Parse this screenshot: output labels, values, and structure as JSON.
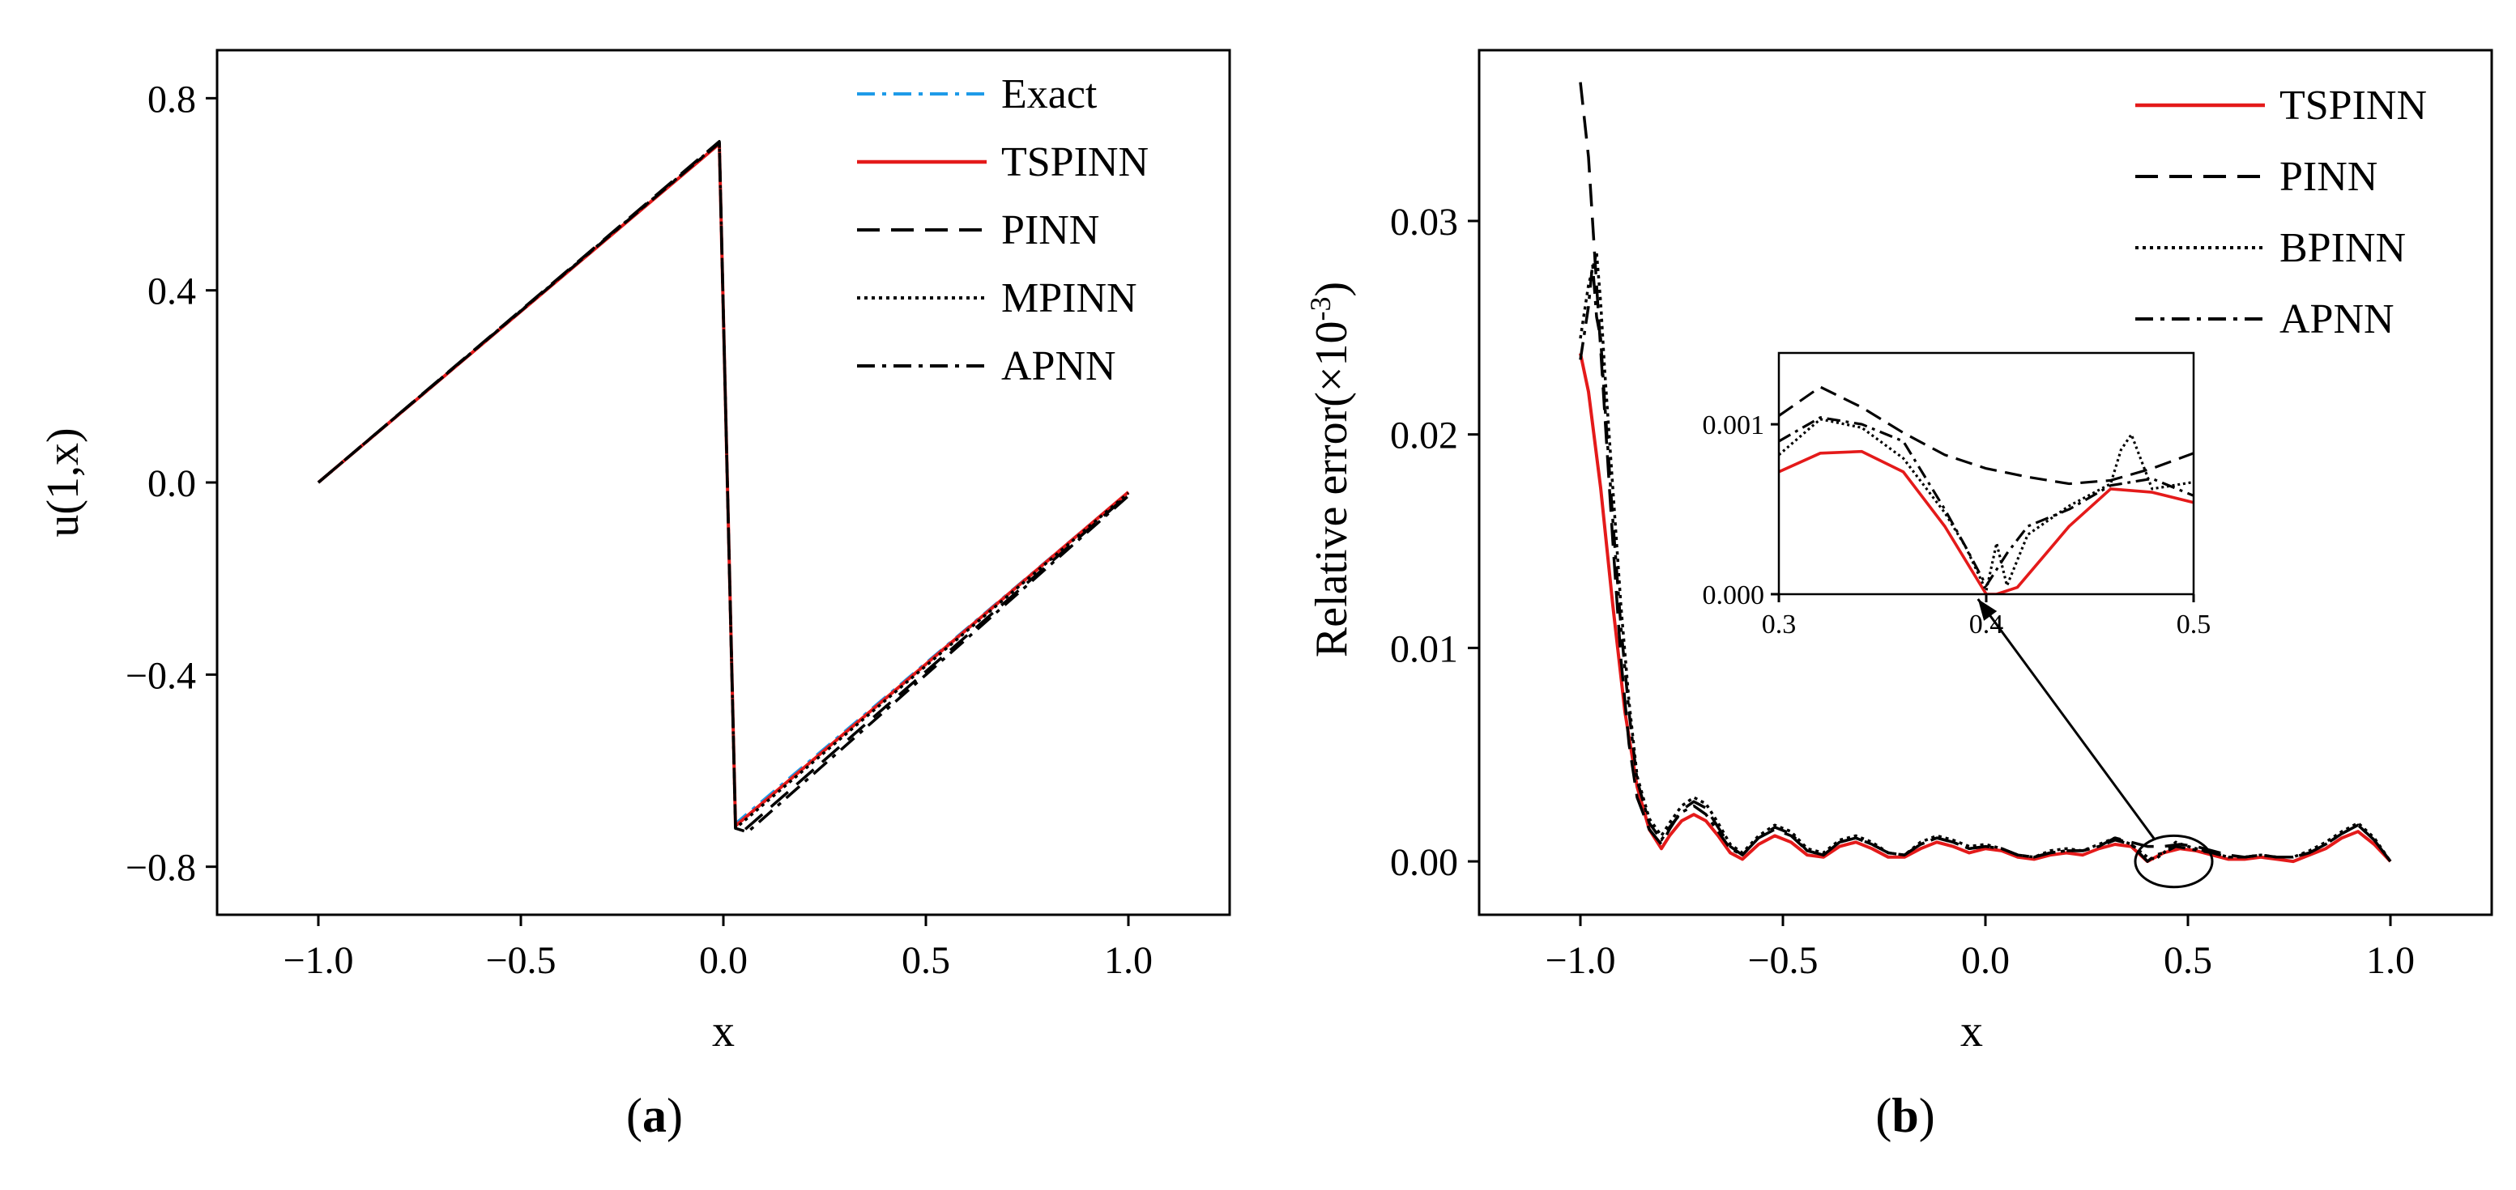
{
  "panels": [
    {
      "id": "a",
      "panel_label": {
        "open": "(",
        "letter": "a",
        "close": ")"
      },
      "legend": [
        {
          "name": "Exact",
          "color": "#1E9BE8",
          "style": "dashdot"
        },
        {
          "name": "TSPINN",
          "color": "#E41A1A",
          "style": "solid"
        },
        {
          "name": "PINN",
          "color": "#000000",
          "style": "dashed"
        },
        {
          "name": "MPINN",
          "color": "#000000",
          "style": "dotted"
        },
        {
          "name": "APNN",
          "color": "#000000",
          "style": "dashdot"
        }
      ]
    },
    {
      "id": "b",
      "panel_label": {
        "open": "(",
        "letter": "b",
        "close": ")"
      },
      "legend": [
        {
          "name": "TSPINN",
          "color": "#E41A1A",
          "style": "solid"
        },
        {
          "name": "PINN",
          "color": "#000000",
          "style": "dashed"
        },
        {
          "name": "BPINN",
          "color": "#000000",
          "style": "dotted"
        },
        {
          "name": "APNN",
          "color": "#000000",
          "style": "dashdot"
        }
      ]
    }
  ],
  "chart_data": [
    {
      "type": "line",
      "xlabel": "x",
      "ylabel": "u(1,x)",
      "xlim": [
        -1.25,
        1.25
      ],
      "ylim": [
        -0.9,
        0.9
      ],
      "xticks": [
        -1.0,
        -0.5,
        0.0,
        0.5,
        1.0
      ],
      "xtick_labels": [
        "−1.0",
        "−0.5",
        "0.0",
        "0.5",
        "1.0"
      ],
      "yticks": [
        -0.8,
        -0.4,
        0.0,
        0.4,
        0.8
      ],
      "ytick_labels": [
        "−0.8",
        "−0.4",
        "0.0",
        "0.4",
        "0.8"
      ],
      "grid": false,
      "legend_position": "top-right",
      "series": [
        {
          "name": "Exact",
          "x": [
            -1.0,
            -0.01,
            0.03,
            1.0
          ],
          "y": [
            0.0,
            0.706,
            -0.71,
            -0.02
          ]
        },
        {
          "name": "TSPINN",
          "x": [
            -1.0,
            -0.01,
            0.03,
            1.0
          ],
          "y": [
            0.0,
            0.705,
            -0.715,
            -0.02
          ]
        },
        {
          "name": "PINN",
          "x": [
            -1.0,
            -0.01,
            0.03,
            0.05,
            1.0
          ],
          "y": [
            0.0,
            0.71,
            -0.72,
            -0.725,
            -0.025
          ]
        },
        {
          "name": "MPINN",
          "x": [
            -1.0,
            -0.01,
            0.03,
            1.0
          ],
          "y": [
            0.0,
            0.708,
            -0.72,
            -0.022
          ]
        },
        {
          "name": "APNN",
          "x": [
            -1.0,
            -0.01,
            0.03,
            0.06,
            1.0
          ],
          "y": [
            0.0,
            0.707,
            -0.72,
            -0.728,
            -0.028
          ]
        }
      ]
    },
    {
      "type": "line",
      "xlabel": "x",
      "ylabel": {
        "text": "Relative error(×10",
        "sup": "-3",
        "close": ")"
      },
      "xlim": [
        -1.25,
        1.25
      ],
      "ylim": [
        -0.0025,
        0.038
      ],
      "xticks": [
        -1.0,
        -0.5,
        0.0,
        0.5,
        1.0
      ],
      "xtick_labels": [
        "−1.0",
        "−0.5",
        "0.0",
        "0.5",
        "1.0"
      ],
      "yticks": [
        0.0,
        0.01,
        0.02,
        0.03
      ],
      "ytick_labels": [
        "0.00",
        "0.01",
        "0.02",
        "0.03"
      ],
      "grid": false,
      "legend_position": "top-right",
      "series": [
        {
          "name": "TSPINN",
          "x": [
            -1.0,
            -0.98,
            -0.95,
            -0.92,
            -0.89,
            -0.86,
            -0.83,
            -0.8,
            -0.78,
            -0.75,
            -0.72,
            -0.69,
            -0.66,
            -0.63,
            -0.6,
            -0.56,
            -0.52,
            -0.48,
            -0.44,
            -0.4,
            -0.36,
            -0.32,
            -0.28,
            -0.24,
            -0.2,
            -0.16,
            -0.12,
            -0.08,
            -0.04,
            0.0,
            0.04,
            0.08,
            0.12,
            0.16,
            0.2,
            0.24,
            0.28,
            0.32,
            0.36,
            0.4,
            0.44,
            0.48,
            0.52,
            0.56,
            0.6,
            0.64,
            0.68,
            0.72,
            0.76,
            0.8,
            0.84,
            0.88,
            0.92,
            0.96,
            1.0
          ],
          "y": [
            0.0238,
            0.022,
            0.0175,
            0.012,
            0.007,
            0.0035,
            0.0015,
            0.0006,
            0.0012,
            0.0019,
            0.0022,
            0.0019,
            0.0012,
            0.0004,
            0.0001,
            0.0008,
            0.0012,
            0.0009,
            0.0003,
            0.0002,
            0.0007,
            0.0009,
            0.0006,
            0.0002,
            0.0002,
            0.0006,
            0.0009,
            0.0007,
            0.0004,
            0.0006,
            0.0005,
            0.0002,
            0.0001,
            0.0003,
            0.0004,
            0.0003,
            0.0006,
            0.0008,
            0.0007,
            0.0,
            0.0004,
            0.0006,
            0.0005,
            0.0003,
            0.0001,
            0.0001,
            0.0002,
            0.0001,
            0.0,
            0.0003,
            0.0006,
            0.0011,
            0.0014,
            0.0008,
            0.0
          ]
        },
        {
          "name": "PINN",
          "x": [
            -1.0,
            -0.98,
            -0.96,
            -0.94,
            -0.92,
            -0.9,
            -0.88,
            -0.86,
            -0.83,
            -0.8,
            -0.78,
            -0.75,
            -0.72,
            -0.69,
            -0.66,
            -0.63,
            -0.6,
            -0.56,
            -0.52,
            -0.48,
            -0.44,
            -0.4,
            -0.36,
            -0.32,
            -0.28,
            -0.24,
            -0.2,
            -0.16,
            -0.12,
            -0.08,
            -0.04,
            0.0,
            0.04,
            0.08,
            0.12,
            0.16,
            0.2,
            0.24,
            0.28,
            0.32,
            0.36,
            0.4,
            0.44,
            0.48,
            0.52,
            0.56,
            0.6,
            0.64,
            0.68,
            0.72,
            0.76,
            0.8,
            0.84,
            0.88,
            0.92,
            0.96,
            1.0
          ],
          "y": [
            0.0365,
            0.033,
            0.027,
            0.021,
            0.015,
            0.0095,
            0.0055,
            0.003,
            0.0015,
            0.0008,
            0.0015,
            0.0024,
            0.0028,
            0.0025,
            0.0016,
            0.0007,
            0.0003,
            0.0011,
            0.0015,
            0.0012,
            0.0005,
            0.0003,
            0.0009,
            0.0011,
            0.0008,
            0.0004,
            0.0003,
            0.0008,
            0.0011,
            0.0009,
            0.0006,
            0.0007,
            0.0006,
            0.0003,
            0.0002,
            0.0004,
            0.0005,
            0.0005,
            0.0007,
            0.0011,
            0.0009,
            0.0007,
            0.0007,
            0.0008,
            0.0007,
            0.0005,
            0.0003,
            0.0002,
            0.0003,
            0.0002,
            0.0002,
            0.0004,
            0.0008,
            0.0013,
            0.0017,
            0.001,
            0.0
          ]
        },
        {
          "name": "BPINN",
          "x": [
            -1.0,
            -0.98,
            -0.96,
            -0.95,
            -0.94,
            -0.92,
            -0.9,
            -0.88,
            -0.86,
            -0.83,
            -0.8,
            -0.78,
            -0.75,
            -0.72,
            -0.69,
            -0.66,
            -0.63,
            -0.6,
            -0.56,
            -0.52,
            -0.48,
            -0.44,
            -0.4,
            -0.36,
            -0.32,
            -0.28,
            -0.24,
            -0.2,
            -0.16,
            -0.12,
            -0.08,
            -0.04,
            0.0,
            0.04,
            0.08,
            0.12,
            0.16,
            0.2,
            0.24,
            0.28,
            0.32,
            0.36,
            0.4,
            0.42,
            0.44,
            0.47,
            0.5,
            0.56,
            0.6,
            0.64,
            0.68,
            0.72,
            0.76,
            0.8,
            0.84,
            0.88,
            0.92,
            0.96,
            1.0
          ],
          "y": [
            0.0245,
            0.027,
            0.0285,
            0.0262,
            0.023,
            0.0175,
            0.012,
            0.0075,
            0.004,
            0.002,
            0.0012,
            0.0018,
            0.0026,
            0.003,
            0.0027,
            0.0018,
            0.0008,
            0.0004,
            0.0012,
            0.0017,
            0.0014,
            0.0006,
            0.0004,
            0.001,
            0.0012,
            0.0009,
            0.0004,
            0.0003,
            0.0009,
            0.0012,
            0.001,
            0.0007,
            0.0008,
            0.0006,
            0.0003,
            0.0002,
            0.0005,
            0.0006,
            0.0005,
            0.0008,
            0.0011,
            0.0008,
            0.0002,
            0.0001,
            0.0004,
            0.0009,
            0.0007,
            0.0004,
            0.0002,
            0.0002,
            0.0003,
            0.0002,
            0.0002,
            0.0005,
            0.0009,
            0.0014,
            0.0018,
            0.0011,
            0.0
          ]
        },
        {
          "name": "APNN",
          "x": [
            -1.0,
            -0.98,
            -0.97,
            -0.96,
            -0.95,
            -0.94,
            -0.92,
            -0.9,
            -0.88,
            -0.86,
            -0.83,
            -0.8,
            -0.78,
            -0.75,
            -0.72,
            -0.69,
            -0.66,
            -0.63,
            -0.6,
            -0.56,
            -0.52,
            -0.48,
            -0.44,
            -0.4,
            -0.36,
            -0.32,
            -0.28,
            -0.24,
            -0.2,
            -0.16,
            -0.12,
            -0.08,
            -0.04,
            0.0,
            0.04,
            0.08,
            0.12,
            0.16,
            0.2,
            0.24,
            0.28,
            0.32,
            0.36,
            0.4,
            0.42,
            0.44,
            0.47,
            0.5,
            0.56,
            0.6,
            0.64,
            0.68,
            0.72,
            0.76,
            0.8,
            0.84,
            0.88,
            0.92,
            0.96,
            1.0
          ],
          "y": [
            0.0235,
            0.026,
            0.028,
            0.0255,
            0.0245,
            0.0215,
            0.016,
            0.011,
            0.007,
            0.0038,
            0.0018,
            0.001,
            0.0016,
            0.0023,
            0.0026,
            0.0022,
            0.0014,
            0.0006,
            0.0003,
            0.0011,
            0.0016,
            0.0013,
            0.0005,
            0.0003,
            0.0009,
            0.0011,
            0.0008,
            0.0004,
            0.0003,
            0.0008,
            0.0011,
            0.0009,
            0.0006,
            0.0007,
            0.0006,
            0.0003,
            0.0002,
            0.0004,
            0.0005,
            0.0005,
            0.0007,
            0.001,
            0.0008,
            0.0,
            0.0003,
            0.0004,
            0.0007,
            0.0006,
            0.0004,
            0.0002,
            0.0002,
            0.0003,
            0.0002,
            0.0002,
            0.0004,
            0.0008,
            0.0013,
            0.0017,
            0.001,
            0.0
          ]
        }
      ]
    },
    {
      "type": "line",
      "xlim": [
        0.3,
        0.5
      ],
      "ylim": [
        0.0,
        0.00142
      ],
      "xticks": [
        0.3,
        0.4,
        0.5
      ],
      "xtick_labels": [
        "0.3",
        "0.4",
        "0.5"
      ],
      "yticks": [
        0.0,
        0.001
      ],
      "ytick_labels": [
        "0.000",
        "0.001"
      ],
      "zoom_x": [
        0.37,
        0.56
      ],
      "zoom_y": [
        -0.0012,
        0.0012
      ],
      "series": [
        {
          "name": "TSPINN",
          "x": [
            0.3,
            0.32,
            0.34,
            0.36,
            0.38,
            0.4,
            0.405,
            0.415,
            0.44,
            0.46,
            0.48,
            0.5
          ],
          "y": [
            0.00072,
            0.00083,
            0.00084,
            0.00072,
            0.0004,
            0.0,
            0.0,
            4e-05,
            0.0004,
            0.00062,
            0.0006,
            0.00054
          ]
        },
        {
          "name": "PINN",
          "x": [
            0.3,
            0.32,
            0.34,
            0.36,
            0.38,
            0.4,
            0.42,
            0.44,
            0.46,
            0.48,
            0.5
          ],
          "y": [
            0.00105,
            0.00122,
            0.0011,
            0.00095,
            0.00082,
            0.00074,
            0.00069,
            0.00065,
            0.00067,
            0.00074,
            0.00083
          ]
        },
        {
          "name": "BPINN",
          "x": [
            0.3,
            0.32,
            0.34,
            0.36,
            0.38,
            0.39,
            0.4,
            0.405,
            0.41,
            0.42,
            0.44,
            0.46,
            0.465,
            0.47,
            0.48,
            0.5
          ],
          "y": [
            0.00082,
            0.00103,
            0.00098,
            0.0008,
            0.00048,
            0.00028,
            2e-05,
            0.0003,
            5e-05,
            0.00035,
            0.00052,
            0.00065,
            0.00085,
            0.00094,
            0.00062,
            0.00066
          ]
        },
        {
          "name": "APNN",
          "x": [
            0.3,
            0.32,
            0.34,
            0.36,
            0.38,
            0.39,
            0.4,
            0.41,
            0.42,
            0.44,
            0.46,
            0.48,
            0.5
          ],
          "y": [
            0.0009,
            0.00104,
            0.001,
            0.0009,
            0.0005,
            0.00028,
            5e-05,
            0.00024,
            0.0004,
            0.0005,
            0.00064,
            0.00068,
            0.00058
          ]
        }
      ]
    }
  ]
}
